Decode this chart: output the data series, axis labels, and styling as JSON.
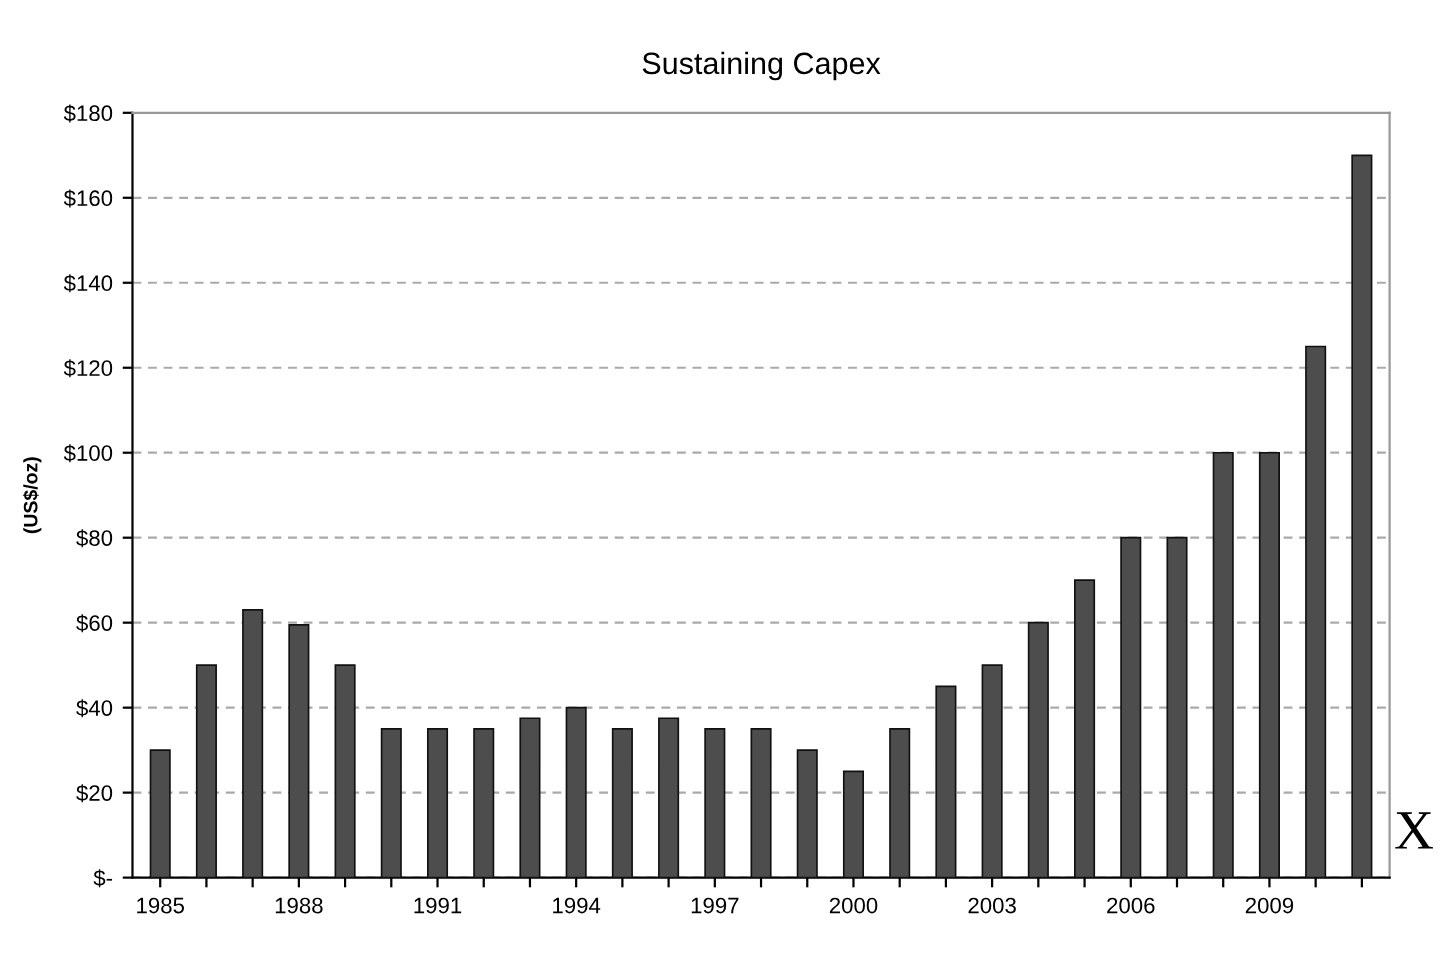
{
  "chart_data": {
    "type": "bar",
    "title": "Sustaining Capex",
    "ylabel": "(US$/oz)",
    "categories": [
      "1985",
      null,
      null,
      "1988",
      null,
      null,
      "1991",
      null,
      null,
      "1994",
      null,
      null,
      "1997",
      null,
      null,
      "2000",
      null,
      null,
      "2003",
      null,
      null,
      "2006",
      null,
      null,
      "2009",
      null,
      null
    ],
    "values": [
      30,
      50,
      63,
      59.5,
      50,
      35,
      35,
      35,
      37.5,
      40,
      35,
      37.5,
      35,
      35,
      30,
      25,
      35,
      45,
      50,
      60,
      70,
      80,
      80,
      100,
      100,
      125,
      170
    ],
    "color": "#4d4d4d",
    "ylim": [
      0,
      180
    ],
    "yticks": [
      {
        "value": 0,
        "label": "$-"
      },
      {
        "value": 20,
        "label": "$20"
      },
      {
        "value": 40,
        "label": "$40"
      },
      {
        "value": 60,
        "label": "$60"
      },
      {
        "value": 80,
        "label": "$80"
      },
      {
        "value": 100,
        "label": "$100"
      },
      {
        "value": 120,
        "label": "$120"
      },
      {
        "value": 140,
        "label": "$140"
      },
      {
        "value": 160,
        "label": "$160"
      },
      {
        "value": 180,
        "label": "$180"
      }
    ],
    "grid": "y",
    "annotations": [
      "X"
    ]
  }
}
